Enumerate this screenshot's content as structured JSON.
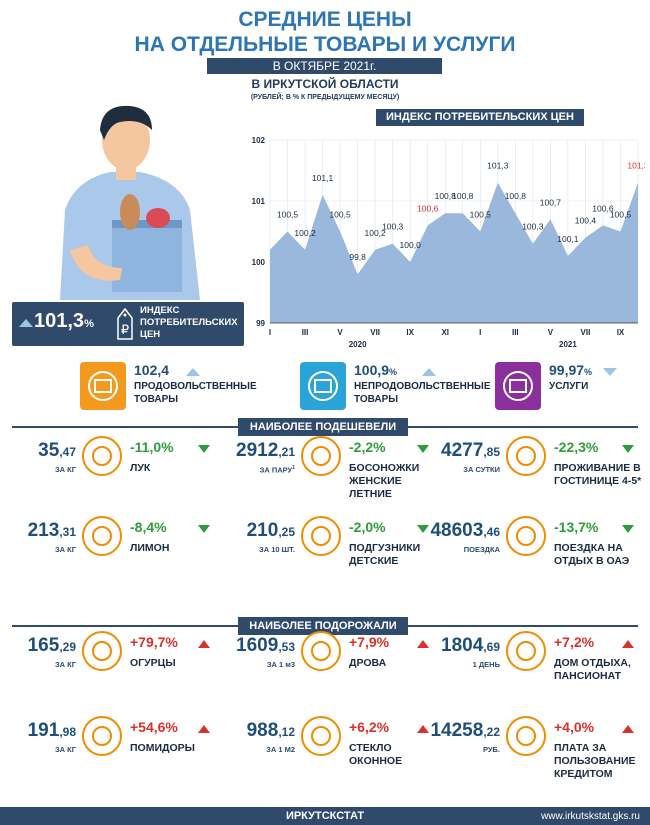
{
  "header": {
    "title_line1": "СРЕДНИЕ ЦЕНЫ",
    "title_line2": "НА ОТДЕЛЬНЫЕ ТОВАРЫ И УСЛУГИ",
    "period": "В ОКТЯБРЕ 2021г.",
    "region": "В ИРКУТСКОЙ ОБЛАСТИ",
    "units": "(РУБЛЕЙ; В % К ПРЕДЫДУЩЕМУ МЕСЯЦУ)"
  },
  "cpi_box": {
    "value": "101,3",
    "pct": "%",
    "label_line1": "ИНДЕКС",
    "label_line2": "ПОТРЕБИТЕЛЬСКИХ",
    "label_line3": "ЦЕН"
  },
  "chart_data": {
    "type": "area",
    "title": "ИНДЕКС ПОТРЕБИТЕЛЬСКИХ ЦЕН",
    "ylim": [
      99,
      102
    ],
    "yticks": [
      "99",
      "100",
      "101",
      "102"
    ],
    "xticks": [
      "I",
      "III",
      "V",
      "VII",
      "IX",
      "XI",
      "I",
      "III",
      "V",
      "VII",
      "IX"
    ],
    "year_labels": [
      "2020",
      "2021"
    ],
    "values": [
      100.2,
      100.5,
      100.2,
      101.1,
      100.5,
      99.8,
      100.2,
      100.3,
      100.0,
      100.6,
      100.8,
      100.8,
      100.5,
      101.3,
      100.8,
      100.3,
      100.7,
      100.1,
      100.4,
      100.6,
      100.5,
      101.3
    ],
    "labels": [
      "",
      "100,5",
      "100,2",
      "101,1",
      "100,5",
      "99,8",
      "100,2",
      "100,3",
      "100,0",
      "100,6",
      "100,8",
      "100,8",
      "100,5",
      "101,3",
      "100,8",
      "100,3",
      "100,7",
      "100,1",
      "100,4",
      "100,6",
      "100,5",
      "101,3"
    ],
    "highlight_indices": [
      9,
      21
    ],
    "fill_color": "#9ab7dc",
    "highlight_color": "#d9312b"
  },
  "categories": [
    {
      "value": "102,4",
      "pct": "",
      "label": "ПРОДОВОЛЬСТВЕННЫЕ ТОВАРЫ",
      "color": "#f39a1e"
    },
    {
      "value": "100,9",
      "pct": "%",
      "label": "НЕПРОДОВОЛЬСТВЕННЫЕ ТОВАРЫ",
      "color": "#2aa3d8"
    },
    {
      "value": "99,97",
      "pct": "%",
      "label": "УСЛУГИ",
      "color": "#8a2f9c"
    }
  ],
  "cheaper": {
    "title": "НАИБОЛЕЕ ПОДЕШЕВЕЛИ",
    "items": [
      {
        "int": "35",
        "dec": ",47",
        "unit": "ЗА КГ",
        "pct": "-11,0%",
        "label1": "ЛУК",
        "label2": "",
        "label3": ""
      },
      {
        "int": "213",
        "dec": ",31",
        "unit": "ЗА КГ",
        "pct": "-8,4%",
        "label1": "ЛИМОН",
        "label2": "",
        "label3": ""
      },
      {
        "int": "2912",
        "dec": ",21",
        "unit": "ЗА ПАРУ",
        "unit_sup": "1",
        "pct": "-2,2%",
        "label1": "БОСОНОЖКИ",
        "label2": "ЖЕНСКИЕ",
        "label3": "ЛЕТНИЕ"
      },
      {
        "int": "210",
        "dec": ",25",
        "unit": "ЗА 10 ШТ.",
        "pct": "-2,0%",
        "label1": "ПОДГУЗНИКИ",
        "label2": "ДЕТСКИЕ",
        "label3": ""
      },
      {
        "int": "4277",
        "dec": ",85",
        "unit": "ЗА СУТКИ",
        "pct": "-22,3%",
        "label1": "ПРОЖИВАНИЕ В",
        "label2": "ГОСТИНИЦЕ 4-5*",
        "label3": ""
      },
      {
        "int": "48603",
        "dec": ",46",
        "unit": "ПОЕЗДКА",
        "pct": "-13,7%",
        "label1": "ПОЕЗДКА НА",
        "label2": "ОТДЫХ В ОАЭ",
        "label3": ""
      }
    ]
  },
  "pricier": {
    "title": "НАИБОЛЕЕ ПОДОРОЖАЛИ",
    "items": [
      {
        "int": "165",
        "dec": ",29",
        "unit": "ЗА КГ",
        "pct": "+79,7%",
        "label1": "ОГУРЦЫ",
        "label2": ""
      },
      {
        "int": "191",
        "dec": ",98",
        "unit": "ЗА КГ",
        "pct": "+54,6%",
        "label1": "ПОМИДОРЫ",
        "label2": ""
      },
      {
        "int": "1609",
        "dec": ",53",
        "unit": "ЗА 1 м3",
        "pct": "+7,9%",
        "label1": "ДРОВА",
        "label2": ""
      },
      {
        "int": "988",
        "dec": ",12",
        "unit": "ЗА 1 М2",
        "pct": "+6,2%",
        "label1": "СТЕКЛО",
        "label2": "ОКОННОЕ"
      },
      {
        "int": "1804",
        "dec": ",69",
        "unit": "1 ДЕНЬ",
        "pct": "+7,2%",
        "label1": "ДОМ ОТДЫХА,",
        "label2": "ПАНСИОНАТ"
      },
      {
        "int": "14258",
        "dec": ",22",
        "unit": "РУБ.",
        "pct": "+4,0%",
        "label1": "ПЛАТА ЗА",
        "label2": "ПОЛЬЗОВАНИЕ",
        "label3": "КРЕДИТОМ"
      }
    ]
  },
  "footer": {
    "org": "ИРКУТСКСТАТ",
    "url": "www.irkutskstat.gks.ru"
  }
}
